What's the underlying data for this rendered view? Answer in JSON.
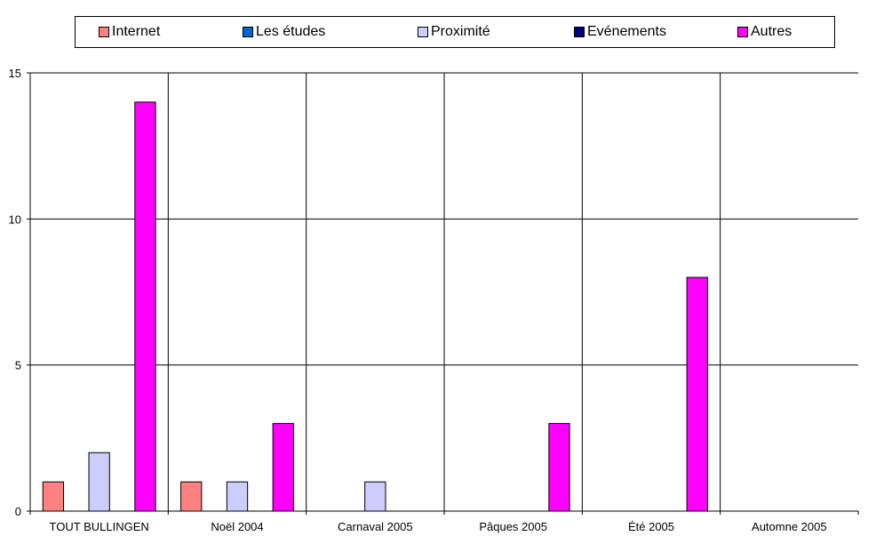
{
  "chart_data": {
    "type": "bar",
    "categories": [
      "TOUT BULLINGEN",
      "Noël 2004",
      "Carnaval 2005",
      "Pâques 2005",
      "Été 2005",
      "Automne 2005"
    ],
    "series": [
      {
        "name": "Internet",
        "color": "#ff8080",
        "values": [
          1,
          1,
          0,
          0,
          0,
          0
        ]
      },
      {
        "name": "Les études",
        "color": "#0066cc",
        "values": [
          0,
          0,
          0,
          0,
          0,
          0
        ]
      },
      {
        "name": "Proximité",
        "color": "#ccccff",
        "values": [
          2,
          1,
          1,
          0,
          0,
          0
        ]
      },
      {
        "name": "Evénements",
        "color": "#000080",
        "values": [
          0,
          0,
          0,
          0,
          0,
          0
        ]
      },
      {
        "name": "Autres",
        "color": "#ff00ff",
        "values": [
          14,
          3,
          0,
          3,
          8,
          0
        ]
      }
    ],
    "ylim": [
      0,
      15
    ],
    "yticks": [
      0,
      5,
      10,
      15
    ],
    "grid": true,
    "legend": "top",
    "title": "",
    "xlabel": "",
    "ylabel": ""
  }
}
